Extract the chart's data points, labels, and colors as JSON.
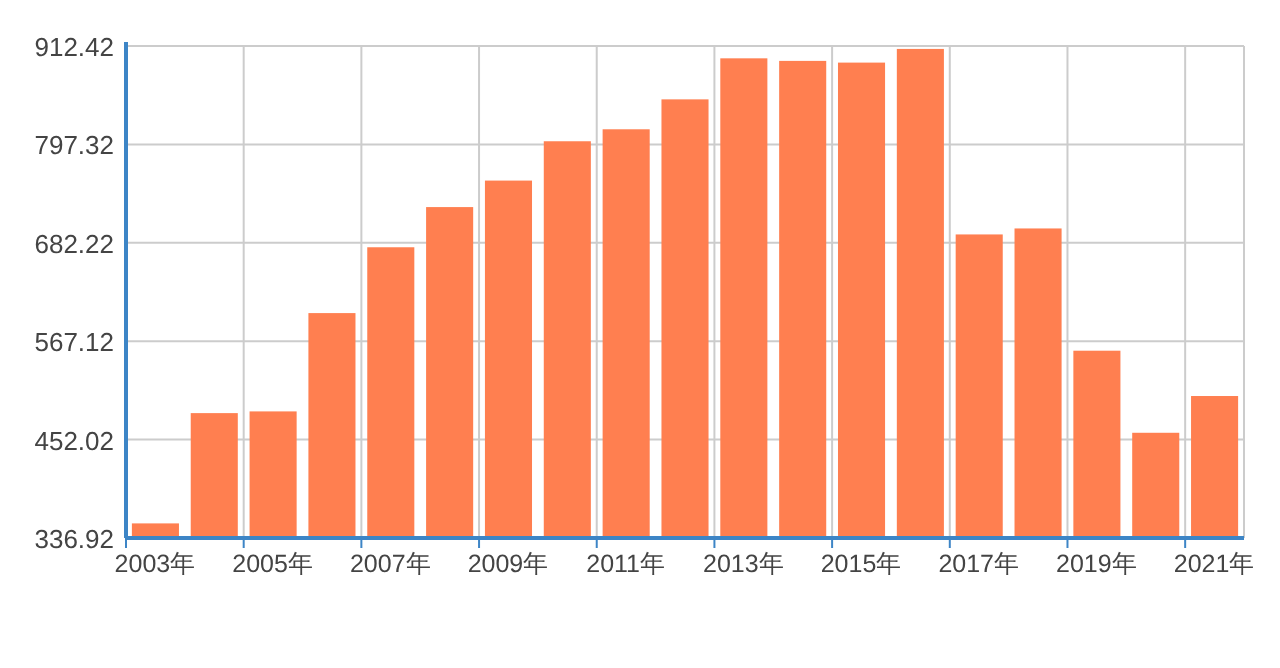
{
  "chart_data": {
    "type": "bar",
    "categories": [
      "2003年",
      null,
      "2005年",
      null,
      "2007年",
      null,
      "2009年",
      null,
      "2011年",
      null,
      "2013年",
      null,
      "2015年",
      null,
      "2017年",
      null,
      "2019年",
      null,
      "2021年"
    ],
    "series": [
      {
        "color": "#ff7f50",
        "values": [
          354,
          483,
          485,
          600,
          677,
          724,
          755,
          801,
          815,
          850,
          898,
          895,
          893,
          909,
          692,
          699,
          556,
          460,
          503
        ]
      }
    ],
    "ylim": [
      336.92,
      912.42
    ],
    "yticks": [
      336.92,
      452.02,
      567.12,
      682.22,
      797.32,
      912.42
    ],
    "grid": true
  }
}
